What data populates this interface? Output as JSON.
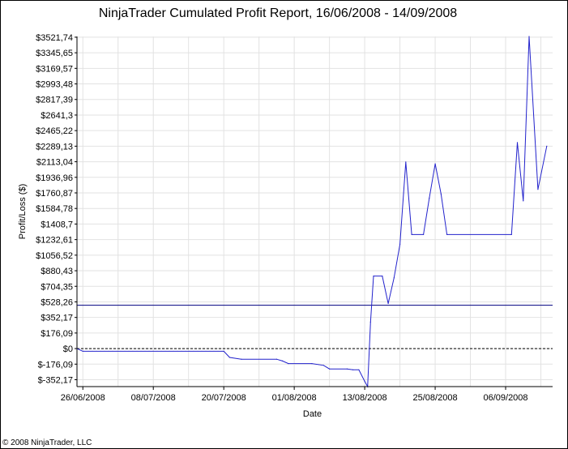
{
  "title": "NinjaTrader Cumulated Profit Report, 16/06/2008 - 14/09/2008",
  "copyright": "© 2008 NinjaTrader, LLC",
  "chart_data": {
    "type": "line",
    "title": "NinjaTrader Cumulated Profit Report, 16/06/2008 - 14/09/2008",
    "xlabel": "Date",
    "ylabel": "Profit/Loss ($)",
    "xlim": [
      "2008-06-25",
      "2008-09-14"
    ],
    "ylim": [
      -430,
      3530
    ],
    "x_ticks": [
      {
        "date": "2008-06-26",
        "label": "26/06/2008"
      },
      {
        "date": "2008-07-08",
        "label": "08/07/2008"
      },
      {
        "date": "2008-07-20",
        "label": "20/07/2008"
      },
      {
        "date": "2008-08-01",
        "label": "01/08/2008"
      },
      {
        "date": "2008-08-13",
        "label": "13/08/2008"
      },
      {
        "date": "2008-08-25",
        "label": "25/08/2008"
      },
      {
        "date": "2008-09-06",
        "label": "06/09/2008"
      }
    ],
    "y_ticks": [
      {
        "value": -352.17,
        "label": "$-352,17"
      },
      {
        "value": -176.09,
        "label": "$-176,09"
      },
      {
        "value": 0,
        "label": "$0"
      },
      {
        "value": 176.09,
        "label": "$176,09"
      },
      {
        "value": 352.17,
        "label": "$352,17"
      },
      {
        "value": 528.26,
        "label": "$528,26"
      },
      {
        "value": 704.35,
        "label": "$704,35"
      },
      {
        "value": 880.43,
        "label": "$880,43"
      },
      {
        "value": 1056.52,
        "label": "$1056,52"
      },
      {
        "value": 1232.61,
        "label": "$1232,61"
      },
      {
        "value": 1408.7,
        "label": "$1408,7"
      },
      {
        "value": 1584.78,
        "label": "$1584,78"
      },
      {
        "value": 1760.87,
        "label": "$1760,87"
      },
      {
        "value": 1936.96,
        "label": "$1936,96"
      },
      {
        "value": 2113.04,
        "label": "$2113,04"
      },
      {
        "value": 2289.13,
        "label": "$2289,13"
      },
      {
        "value": 2465.22,
        "label": "$2465,22"
      },
      {
        "value": 2641.3,
        "label": "$2641,3"
      },
      {
        "value": 2817.39,
        "label": "$2817,39"
      },
      {
        "value": 2993.48,
        "label": "$2993,48"
      },
      {
        "value": 3169.57,
        "label": "$3169,57"
      },
      {
        "value": 3345.65,
        "label": "$3345,65"
      },
      {
        "value": 3521.74,
        "label": "$3521,74"
      }
    ],
    "grid": true,
    "zero_line": {
      "value": 0,
      "style": "dashed"
    },
    "reference_line": {
      "value": 490
    },
    "line_color": "#2222cc",
    "series": [
      {
        "points": [
          {
            "x": "2008-06-25",
            "y": 0
          },
          {
            "x": "2008-06-26",
            "y": -30
          },
          {
            "x": "2008-07-20",
            "y": -30
          },
          {
            "x": "2008-07-21",
            "y": -100
          },
          {
            "x": "2008-07-23",
            "y": -120
          },
          {
            "x": "2008-07-29",
            "y": -120
          },
          {
            "x": "2008-07-30",
            "y": -140
          },
          {
            "x": "2008-07-31",
            "y": -170
          },
          {
            "x": "2008-08-04",
            "y": -170
          },
          {
            "x": "2008-08-06",
            "y": -190
          },
          {
            "x": "2008-08-07",
            "y": -230
          },
          {
            "x": "2008-08-10",
            "y": -230
          },
          {
            "x": "2008-08-11",
            "y": -240
          },
          {
            "x": "2008-08-12",
            "y": -240
          },
          {
            "x": "2008-08-13",
            "y": -370
          },
          {
            "x": "2008-08-13T12:00",
            "y": -430
          },
          {
            "x": "2008-08-14",
            "y": 300
          },
          {
            "x": "2008-08-14T12:00",
            "y": 820
          },
          {
            "x": "2008-08-16",
            "y": 820
          },
          {
            "x": "2008-08-17",
            "y": 510
          },
          {
            "x": "2008-08-18",
            "y": 800
          },
          {
            "x": "2008-08-19",
            "y": 1180
          },
          {
            "x": "2008-08-20",
            "y": 2110
          },
          {
            "x": "2008-08-21",
            "y": 1290
          },
          {
            "x": "2008-08-23",
            "y": 1290
          },
          {
            "x": "2008-08-24",
            "y": 1700
          },
          {
            "x": "2008-08-25",
            "y": 2090
          },
          {
            "x": "2008-08-26",
            "y": 1750
          },
          {
            "x": "2008-08-27",
            "y": 1290
          },
          {
            "x": "2008-09-07",
            "y": 1290
          },
          {
            "x": "2008-09-08",
            "y": 2330
          },
          {
            "x": "2008-09-09",
            "y": 1670
          },
          {
            "x": "2008-09-10",
            "y": 3530
          },
          {
            "x": "2008-09-11T12:00",
            "y": 1800
          },
          {
            "x": "2008-09-13",
            "y": 2290
          }
        ]
      }
    ]
  }
}
